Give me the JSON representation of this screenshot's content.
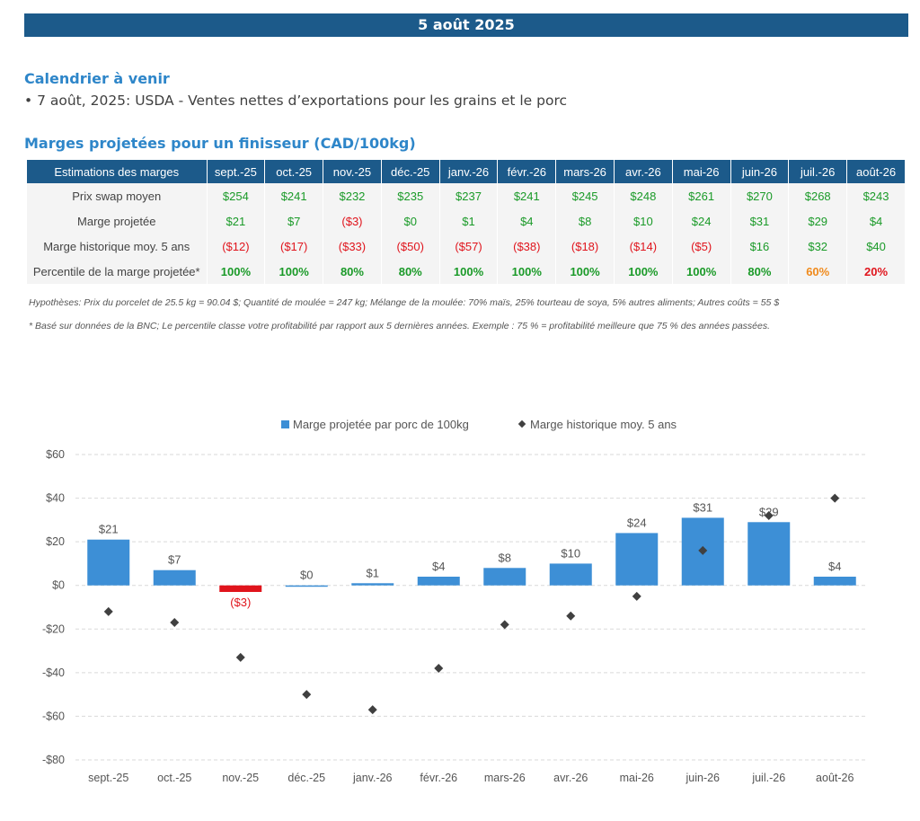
{
  "header": {
    "date": "5 août 2025"
  },
  "calendar": {
    "title": "Calendrier à venir",
    "items": [
      "• 7 août, 2025: USDA - Ventes nettes d’exportations pour les grains et le porc"
    ]
  },
  "margins": {
    "title": "Marges projetées pour un finisseur (CAD/100kg)",
    "header_label": "Estimations des marges",
    "months": [
      "sept.-25",
      "oct.-25",
      "nov.-25",
      "déc.-25",
      "janv.-26",
      "févr.-26",
      "mars-26",
      "avr.-26",
      "mai-26",
      "juin-26",
      "juil.-26",
      "août-26"
    ],
    "rows": [
      {
        "label": "Prix swap moyen",
        "values": [
          "$254",
          "$241",
          "$232",
          "$235",
          "$237",
          "$241",
          "$245",
          "$248",
          "$261",
          "$270",
          "$268",
          "$243"
        ],
        "colors": [
          "pos",
          "pos",
          "pos",
          "pos",
          "pos",
          "pos",
          "pos",
          "pos",
          "pos",
          "pos",
          "pos",
          "pos"
        ]
      },
      {
        "label": "Marge projetée",
        "values": [
          "$21",
          "$7",
          "($3)",
          "$0",
          "$1",
          "$4",
          "$8",
          "$10",
          "$24",
          "$31",
          "$29",
          "$4"
        ],
        "colors": [
          "pos",
          "pos",
          "neg",
          "pos",
          "pos",
          "pos",
          "pos",
          "pos",
          "pos",
          "pos",
          "pos",
          "pos"
        ]
      },
      {
        "label": "Marge historique moy. 5 ans",
        "values": [
          "($12)",
          "($17)",
          "($33)",
          "($50)",
          "($57)",
          "($38)",
          "($18)",
          "($14)",
          "($5)",
          "$16",
          "$32",
          "$40"
        ],
        "colors": [
          "neg",
          "neg",
          "neg",
          "neg",
          "neg",
          "neg",
          "neg",
          "neg",
          "neg",
          "pos",
          "pos",
          "pos"
        ]
      },
      {
        "label": "Percentile de la marge projetée*",
        "values": [
          "100%",
          "100%",
          "80%",
          "80%",
          "100%",
          "100%",
          "100%",
          "100%",
          "100%",
          "80%",
          "60%",
          "20%"
        ],
        "colors": [
          "pct-green",
          "pct-green",
          "pct-green",
          "pct-green",
          "pct-green",
          "pct-green",
          "pct-green",
          "pct-green",
          "pct-green",
          "pct-green",
          "pct-orange",
          "pct-red"
        ]
      }
    ],
    "note1": "Hypothèses: Prix du porcelet de 25.5 kg = 90.04 $; Quantité de moulée = 247 kg; Mélange de la moulée: 70% maïs, 25% tourteau de soya, 5% autres aliments; Autres coûts = 55 $",
    "note2": "* Basé sur données de la BNC; Le percentile classe votre profitabilité par rapport aux 5 dernières années. Exemple : 75 % = profitabilité meilleure que 75 % des années passées."
  },
  "colors": {
    "bar": "#3d8fd6",
    "bar_negative": "#e0141c",
    "marker": "#404040",
    "header": "#1c5a8a"
  },
  "chart_data": {
    "type": "bar",
    "categories": [
      "sept.-25",
      "oct.-25",
      "nov.-25",
      "déc.-25",
      "janv.-26",
      "févr.-26",
      "mars-26",
      "avr.-26",
      "mai-26",
      "juin-26",
      "juil.-26",
      "août-26"
    ],
    "series": [
      {
        "name": "Marge projetée par porc de 100kg",
        "type": "bar",
        "values": [
          21,
          7,
          -3,
          0,
          1,
          4,
          8,
          10,
          24,
          31,
          29,
          4
        ],
        "labels": [
          "$21",
          "$7",
          "($3)",
          "$0",
          "$1",
          "$4",
          "$8",
          "$10",
          "$24",
          "$31",
          "$29",
          "$4"
        ]
      },
      {
        "name": "Marge historique moy. 5 ans",
        "type": "scatter",
        "values": [
          -12,
          -17,
          -33,
          -50,
          -57,
          -38,
          -18,
          -14,
          -5,
          16,
          32,
          40
        ]
      }
    ],
    "ylim": [
      -80,
      60
    ],
    "yticks": [
      60,
      40,
      20,
      0,
      -20,
      -40,
      -60,
      -80
    ],
    "ytick_labels": [
      "$60",
      "$40",
      "$20",
      "$0",
      "-$20",
      "-$40",
      "-$60",
      "-$80"
    ],
    "grid": true,
    "legend": "top-center"
  }
}
